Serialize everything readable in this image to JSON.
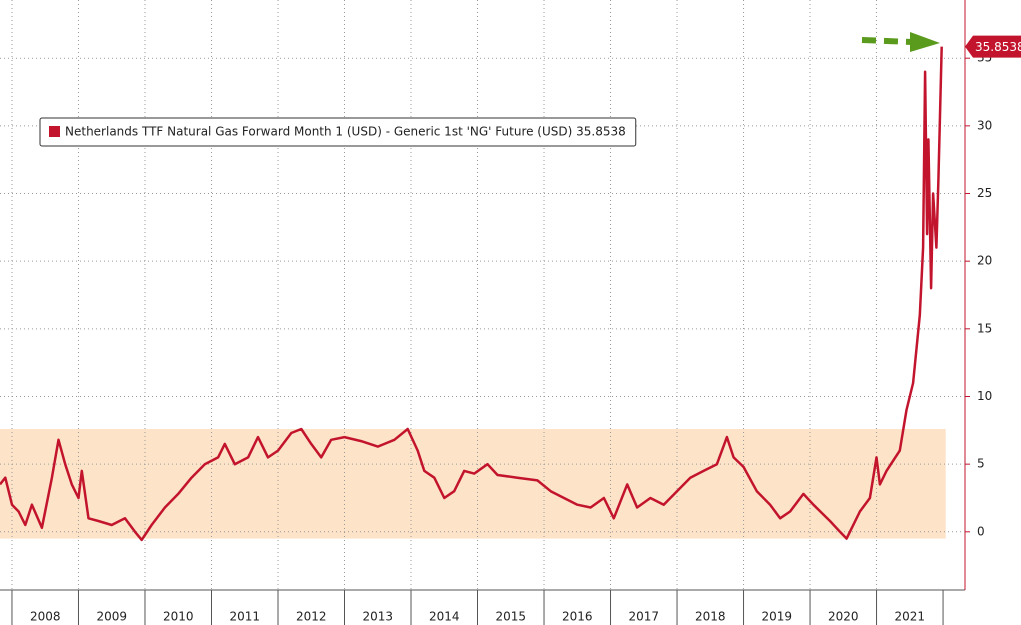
{
  "chart_data": {
    "type": "line",
    "series": [
      {
        "name": "Netherlands TTF Natural Gas Forward Month 1 (USD) - Generic 1st 'NG' Future (USD) 35.8538",
        "color": "#c3142d",
        "x": [
          2007.82,
          2007.9,
          2008.0,
          2008.1,
          2008.2,
          2008.3,
          2008.45,
          2008.6,
          2008.7,
          2008.8,
          2008.9,
          2009.0,
          2009.05,
          2009.15,
          2009.3,
          2009.5,
          2009.7,
          2009.85,
          2009.95,
          2010.1,
          2010.3,
          2010.5,
          2010.7,
          2010.9,
          2011.1,
          2011.2,
          2011.35,
          2011.55,
          2011.7,
          2011.85,
          2012.0,
          2012.2,
          2012.35,
          2012.5,
          2012.65,
          2012.8,
          2013.0,
          2013.25,
          2013.5,
          2013.75,
          2013.95,
          2014.1,
          2014.2,
          2014.35,
          2014.5,
          2014.65,
          2014.8,
          2014.95,
          2015.15,
          2015.3,
          2015.6,
          2015.9,
          2016.1,
          2016.3,
          2016.5,
          2016.7,
          2016.9,
          2017.05,
          2017.25,
          2017.4,
          2017.6,
          2017.8,
          2018.0,
          2018.2,
          2018.4,
          2018.6,
          2018.75,
          2018.85,
          2019.0,
          2019.2,
          2019.4,
          2019.55,
          2019.7,
          2019.9,
          2020.05,
          2020.3,
          2020.45,
          2020.55,
          2020.75,
          2020.9,
          2021.0,
          2021.05,
          2021.15,
          2021.35,
          2021.45,
          2021.55,
          2021.65,
          2021.7,
          2021.73,
          2021.76,
          2021.78,
          2021.82,
          2021.85,
          2021.9,
          2021.93,
          2021.98
        ],
        "values": [
          3.5,
          4,
          2,
          1.5,
          0.5,
          2.0,
          0.3,
          4,
          6.8,
          5,
          3.5,
          2.5,
          4.5,
          1,
          0.8,
          0.5,
          1.0,
          0,
          -0.6,
          0.5,
          1.8,
          2.8,
          4,
          5,
          5.5,
          6.5,
          5,
          5.5,
          7,
          5.5,
          6,
          7.3,
          7.6,
          6.5,
          5.5,
          6.8,
          7,
          6.7,
          6.3,
          6.8,
          7.6,
          6,
          4.5,
          4,
          2.5,
          3,
          4.5,
          4.3,
          5,
          4.2,
          4,
          3.8,
          3,
          2.5,
          2,
          1.8,
          2.5,
          1,
          3.5,
          1.8,
          2.5,
          2,
          3,
          4,
          4.5,
          5,
          7,
          5.5,
          4.8,
          3,
          2,
          1,
          1.5,
          2.8,
          2,
          0.8,
          0,
          -0.5,
          1.5,
          2.5,
          5.5,
          3.5,
          4.5,
          6,
          9,
          11,
          16,
          21,
          34,
          22,
          29,
          18,
          25,
          21,
          26,
          35.8538
        ]
      }
    ],
    "highlight_range": [
      -0.5,
      7.6
    ],
    "highlight_color": "#fde3c8",
    "xlim": [
      2007.82,
      2022.33
    ],
    "xticks": [
      {
        "value": 2008.5,
        "label": "2008"
      },
      {
        "value": 2009.5,
        "label": "2009"
      },
      {
        "value": 2010.5,
        "label": "2010"
      },
      {
        "value": 2011.5,
        "label": "2011"
      },
      {
        "value": 2012.5,
        "label": "2012"
      },
      {
        "value": 2013.5,
        "label": "2013"
      },
      {
        "value": 2014.5,
        "label": "2014"
      },
      {
        "value": 2015.5,
        "label": "2015"
      },
      {
        "value": 2016.5,
        "label": "2016"
      },
      {
        "value": 2017.5,
        "label": "2017"
      },
      {
        "value": 2018.5,
        "label": "2018"
      },
      {
        "value": 2019.5,
        "label": "2019"
      },
      {
        "value": 2020.5,
        "label": "2020"
      },
      {
        "value": 2021.5,
        "label": "2021"
      }
    ],
    "ylim": [
      -4.3,
      39.3
    ],
    "yticks": [
      0,
      5,
      10,
      15,
      20,
      25,
      30,
      35
    ],
    "grid": true
  }
}
